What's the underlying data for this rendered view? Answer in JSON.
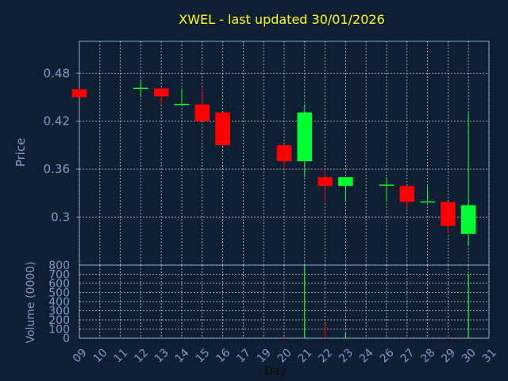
{
  "chart_data": {
    "type": "candlestick",
    "title": "XWEL - last updated 30/01/2026",
    "xlabel": "Day",
    "ylabel_price": "Price",
    "ylabel_volume": "Volume (0000)",
    "x_ticks": [
      "09",
      "10",
      "11",
      "12",
      "13",
      "14",
      "15",
      "16",
      "17",
      "19",
      "20",
      "21",
      "22",
      "23",
      "24",
      "26",
      "27",
      "28",
      "29",
      "30",
      "31"
    ],
    "price_ylim": [
      0.24,
      0.52
    ],
    "price_ticks": [
      "0.3",
      "0.36",
      "0.42",
      "0.48"
    ],
    "volume_ylim": [
      0,
      800
    ],
    "volume_ticks": [
      "0",
      "100",
      "200",
      "300",
      "400",
      "500",
      "600",
      "700",
      "800"
    ],
    "grid": true,
    "candles": [
      {
        "day": "09",
        "open": 0.46,
        "high": 0.46,
        "low": 0.45,
        "close": 0.45
      },
      {
        "day": "12",
        "open": 0.46,
        "high": 0.471,
        "low": 0.45,
        "close": 0.461
      },
      {
        "day": "13",
        "open": 0.461,
        "high": 0.461,
        "low": 0.44,
        "close": 0.451
      },
      {
        "day": "14",
        "open": 0.44,
        "high": 0.461,
        "low": 0.44,
        "close": 0.441
      },
      {
        "day": "15",
        "open": 0.441,
        "high": 0.461,
        "low": 0.42,
        "close": 0.42
      },
      {
        "day": "16",
        "open": 0.431,
        "high": 0.431,
        "low": 0.39,
        "close": 0.39
      },
      {
        "day": "20",
        "open": 0.39,
        "high": 0.39,
        "low": 0.36,
        "close": 0.37
      },
      {
        "day": "21",
        "open": 0.37,
        "high": 0.441,
        "low": 0.35,
        "close": 0.431
      },
      {
        "day": "22",
        "open": 0.35,
        "high": 0.36,
        "low": 0.319,
        "close": 0.339
      },
      {
        "day": "23",
        "open": 0.339,
        "high": 0.35,
        "low": 0.319,
        "close": 0.35
      },
      {
        "day": "26",
        "open": 0.339,
        "high": 0.35,
        "low": 0.319,
        "close": 0.34
      },
      {
        "day": "27",
        "open": 0.339,
        "high": 0.339,
        "low": 0.31,
        "close": 0.319
      },
      {
        "day": "28",
        "open": 0.318,
        "high": 0.339,
        "low": 0.318,
        "close": 0.319
      },
      {
        "day": "29",
        "open": 0.319,
        "high": 0.319,
        "low": 0.279,
        "close": 0.289
      },
      {
        "day": "30",
        "open": 0.279,
        "high": 0.431,
        "low": 0.264,
        "close": 0.315
      }
    ],
    "volume": [
      {
        "day": "20",
        "value": 20
      },
      {
        "day": "21",
        "value": 780
      },
      {
        "day": "22",
        "value": 160
      },
      {
        "day": "23",
        "value": 60
      },
      {
        "day": "26",
        "value": 10
      },
      {
        "day": "27",
        "value": 10
      },
      {
        "day": "29",
        "value": 30
      },
      {
        "day": "30",
        "value": 700
      }
    ],
    "colors": {
      "background": "#0f1f33",
      "up": "#00ff33",
      "down": "#ff0000",
      "title": "#ffff00",
      "axis_text": "#7a9cc8",
      "grid": "#c8c8c8",
      "frame": "#7a9cc8"
    }
  }
}
